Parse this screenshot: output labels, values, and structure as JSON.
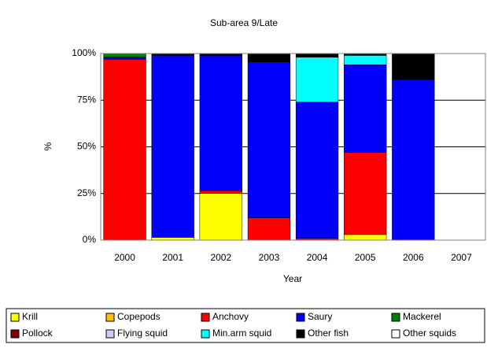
{
  "chart_data": {
    "type": "stacked_bar",
    "title": "Sub-area 9/Late",
    "x_label": "Year",
    "y_label": "%",
    "categories": [
      "2000",
      "2001",
      "2002",
      "2003",
      "2004",
      "2005",
      "2006",
      "2007"
    ],
    "series": [
      {
        "name": "Krill",
        "color": "#ffff00",
        "values": [
          0,
          1.5,
          25,
          0,
          0,
          3,
          0,
          0
        ]
      },
      {
        "name": "Copepods",
        "color": "#ffc000",
        "values": [
          0,
          0,
          0,
          0,
          0,
          0,
          0,
          0
        ]
      },
      {
        "name": "Anchovy",
        "color": "#ff0000",
        "values": [
          97,
          0,
          1.5,
          12,
          1,
          44,
          0,
          0
        ]
      },
      {
        "name": "Saury",
        "color": "#0000ff",
        "values": [
          1,
          97.5,
          72.5,
          83.5,
          73,
          47,
          86,
          0
        ]
      },
      {
        "name": "Mackerel",
        "color": "#008000",
        "values": [
          2,
          0,
          0,
          0,
          0,
          0,
          0,
          0
        ]
      },
      {
        "name": "Pollock",
        "color": "#800000",
        "values": [
          0,
          0,
          0,
          0,
          0,
          0,
          0,
          0
        ]
      },
      {
        "name": "Flying squid",
        "color": "#ccccff",
        "values": [
          0,
          0,
          0,
          0,
          0,
          0,
          0,
          0
        ]
      },
      {
        "name": "Min.arm squid",
        "color": "#00ffff",
        "values": [
          0,
          0,
          0,
          0,
          24,
          5,
          0,
          0
        ]
      },
      {
        "name": "Other fish",
        "color": "#000000",
        "values": [
          0,
          1,
          1,
          4.5,
          2,
          1,
          14,
          0
        ]
      },
      {
        "name": "Other squids",
        "color": "#ffffff",
        "values": [
          0,
          0,
          0,
          0,
          0,
          0,
          0,
          0
        ]
      }
    ],
    "ylim": [
      0,
      100
    ],
    "yticks": [
      {
        "value": 0,
        "label": "0%"
      },
      {
        "value": 25,
        "label": "25%"
      },
      {
        "value": 50,
        "label": "50%"
      },
      {
        "value": 75,
        "label": "75%"
      },
      {
        "value": 100,
        "label": "100%"
      }
    ],
    "grid": true,
    "legend": "bottom"
  }
}
